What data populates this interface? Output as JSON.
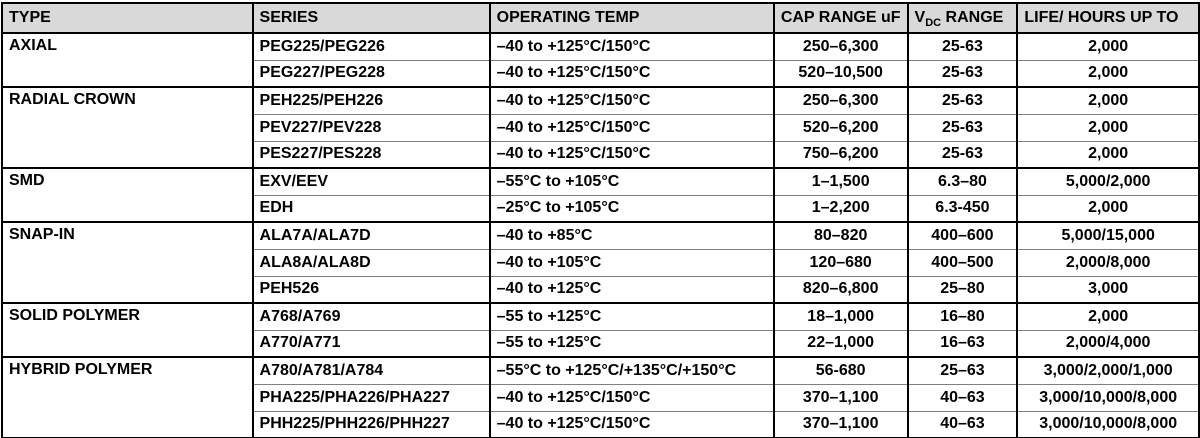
{
  "colors": {
    "header_bg": "#d9d9d9",
    "strong_border": "#000000",
    "light_row_border": "#808080",
    "text": "#000000"
  },
  "table": {
    "columns": [
      {
        "label": "TYPE"
      },
      {
        "label": "SERIES"
      },
      {
        "label": "OPERATING TEMP"
      },
      {
        "label": "CAP RANGE uF"
      },
      {
        "label_main": "V",
        "label_sub": "DC",
        "label_rest": " RANGE"
      },
      {
        "label": "LIFE/ HOURS UP TO"
      }
    ],
    "groups": [
      {
        "type": "AXIAL",
        "rows": [
          {
            "series": "PEG225/PEG226",
            "temp": "–40 to +125°C/150°C",
            "cap": "250–6,300",
            "vdc": "25-63",
            "life": "2,000"
          },
          {
            "series": "PEG227/PEG228",
            "temp": "–40 to +125°C/150°C",
            "cap": "520–10,500",
            "vdc": "25-63",
            "life": "2,000"
          }
        ]
      },
      {
        "type": "RADIAL CROWN",
        "rows": [
          {
            "series": "PEH225/PEH226",
            "temp": "–40 to +125°C/150°C",
            "cap": "250–6,300",
            "vdc": "25-63",
            "life": "2,000"
          },
          {
            "series": "PEV227/PEV228",
            "temp": "–40 to +125°C/150°C",
            "cap": "520–6,200",
            "vdc": "25-63",
            "life": "2,000"
          },
          {
            "series": "PES227/PES228",
            "temp": "–40 to +125°C/150°C",
            "cap": "750–6,200",
            "vdc": "25-63",
            "life": "2,000"
          }
        ]
      },
      {
        "type": "SMD",
        "rows": [
          {
            "series": "EXV/EEV",
            "temp": "–55°C to +105°C",
            "cap": "1–1,500",
            "vdc": "6.3–80",
            "life": "5,000/2,000"
          },
          {
            "series": "EDH",
            "temp": "–25°C to +105°C",
            "cap": "1–2,200",
            "vdc": "6.3-450",
            "life": "2,000"
          }
        ]
      },
      {
        "type": "SNAP-IN",
        "rows": [
          {
            "series": "ALA7A/ALA7D",
            "temp": "–40 to +85°C",
            "cap": "80–820",
            "vdc": "400–600",
            "life": "5,000/15,000"
          },
          {
            "series": "ALA8A/ALA8D",
            "temp": "–40 to +105°C",
            "cap": "120–680",
            "vdc": "400–500",
            "life": "2,000/8,000"
          },
          {
            "series": "PEH526",
            "temp": "–40 to +125°C",
            "cap": "820–6,800",
            "vdc": "25–80",
            "life": "3,000"
          }
        ]
      },
      {
        "type": "SOLID POLYMER",
        "rows": [
          {
            "series": "A768/A769",
            "temp": "–55 to +125°C",
            "cap": "18–1,000",
            "vdc": "16–80",
            "life": "2,000"
          },
          {
            "series": "A770/A771",
            "temp": "–55 to +125°C",
            "cap": "22–1,000",
            "vdc": "16–63",
            "life": "2,000/4,000"
          }
        ]
      },
      {
        "type": "HYBRID POLYMER",
        "rows": [
          {
            "series": "A780/A781/A784",
            "temp": "–55°C to +125°C/+135°C/+150°C",
            "cap": "56-680",
            "vdc": "25–63",
            "life": "3,000/2,000/1,000"
          },
          {
            "series": "PHA225/PHA226/PHA227",
            "temp": "–40 to +125°C/150°C",
            "cap": "370–1,100",
            "vdc": "40–63",
            "life": "3,000/10,000/8,000"
          },
          {
            "series": "PHH225/PHH226/PHH227",
            "temp": "–40 to +125°C/150°C",
            "cap": "370–1,100",
            "vdc": "40–63",
            "life": "3,000/10,000/8,000"
          }
        ]
      }
    ]
  }
}
